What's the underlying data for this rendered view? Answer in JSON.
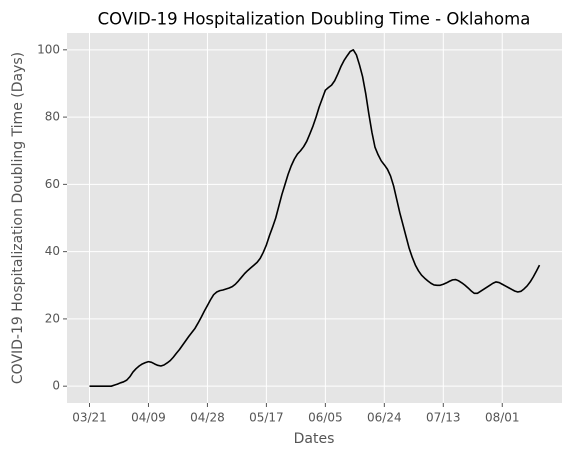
{
  "chart_data": {
    "type": "line",
    "title": "COVID-19 Hospitalization Doubling Time - Oklahoma",
    "x_label": "Dates",
    "y_label": "COVID-19 Hospitalization Doubling Time (Days)",
    "categories": [
      "03/21",
      null,
      null,
      null,
      null,
      null,
      null,
      null,
      null,
      null,
      null,
      null,
      null,
      null,
      null,
      null,
      null,
      null,
      null,
      "04/09",
      null,
      null,
      null,
      null,
      null,
      null,
      null,
      null,
      null,
      null,
      null,
      null,
      null,
      null,
      null,
      null,
      null,
      null,
      "04/28",
      null,
      null,
      null,
      null,
      null,
      null,
      null,
      null,
      null,
      null,
      null,
      null,
      null,
      null,
      null,
      null,
      null,
      null,
      "05/17",
      null,
      null,
      null,
      null,
      null,
      null,
      null,
      null,
      null,
      null,
      null,
      null,
      null,
      null,
      null,
      null,
      null,
      null,
      "06/05",
      null,
      null,
      null,
      null,
      null,
      null,
      null,
      null,
      null,
      null,
      null,
      null,
      null,
      null,
      null,
      null,
      null,
      null,
      "06/24",
      null,
      null,
      null,
      null,
      null,
      null,
      null,
      null,
      null,
      null,
      null,
      null,
      null,
      null,
      null,
      null,
      null,
      null,
      "07/13",
      null,
      null,
      null,
      null,
      null,
      null,
      null,
      null,
      null,
      null,
      null,
      null,
      null,
      null,
      null,
      null,
      null,
      null,
      "08/01",
      null,
      null,
      null,
      null,
      null,
      null,
      null,
      null,
      null,
      null,
      null,
      null
    ],
    "series": [
      {
        "name": "Doubling Time",
        "color": "#000000",
        "values": [
          0,
          0,
          0,
          0,
          0,
          0,
          0,
          0,
          0.3,
          0.6,
          1.0,
          1.3,
          1.8,
          2.8,
          4.2,
          5.2,
          6.0,
          6.6,
          7.0,
          7.3,
          7.1,
          6.6,
          6.2,
          6.0,
          6.3,
          6.9,
          7.6,
          8.6,
          9.8,
          10.9,
          12.2,
          13.5,
          14.8,
          16.0,
          17.2,
          18.8,
          20.5,
          22.3,
          24.0,
          25.7,
          27.2,
          28.0,
          28.4,
          28.6,
          28.9,
          29.2,
          29.6,
          30.3,
          31.3,
          32.4,
          33.5,
          34.4,
          35.2,
          36.0,
          36.8,
          38.0,
          39.8,
          42.0,
          44.8,
          47.3,
          50.0,
          53.5,
          57.0,
          60.0,
          63.0,
          65.5,
          67.5,
          69.0,
          70.0,
          71.2,
          72.8,
          75.0,
          77.3,
          80.0,
          83.0,
          85.5,
          88.0,
          88.8,
          89.5,
          90.8,
          92.8,
          95.0,
          96.8,
          98.2,
          99.5,
          100.0,
          98.5,
          95.5,
          92.0,
          87.0,
          81.0,
          75.5,
          71.0,
          68.8,
          67.0,
          65.8,
          64.5,
          62.5,
          59.5,
          55.5,
          51.5,
          48.0,
          44.5,
          41.0,
          38.3,
          36.0,
          34.3,
          33.0,
          32.1,
          31.3,
          30.6,
          30.1,
          30.0,
          30.0,
          30.3,
          30.7,
          31.2,
          31.6,
          31.7,
          31.3,
          30.7,
          30.0,
          29.2,
          28.3,
          27.6,
          27.6,
          28.2,
          28.8,
          29.4,
          30.0,
          30.6,
          31.0,
          30.8,
          30.3,
          29.8,
          29.3,
          28.8,
          28.3,
          28.0,
          28.2,
          28.9,
          29.8,
          31.0,
          32.5,
          34.2,
          36.0
        ]
      }
    ],
    "ylim": [
      -5,
      105
    ],
    "yticks": [
      0,
      20,
      40,
      60,
      80,
      100
    ],
    "grid": true
  }
}
